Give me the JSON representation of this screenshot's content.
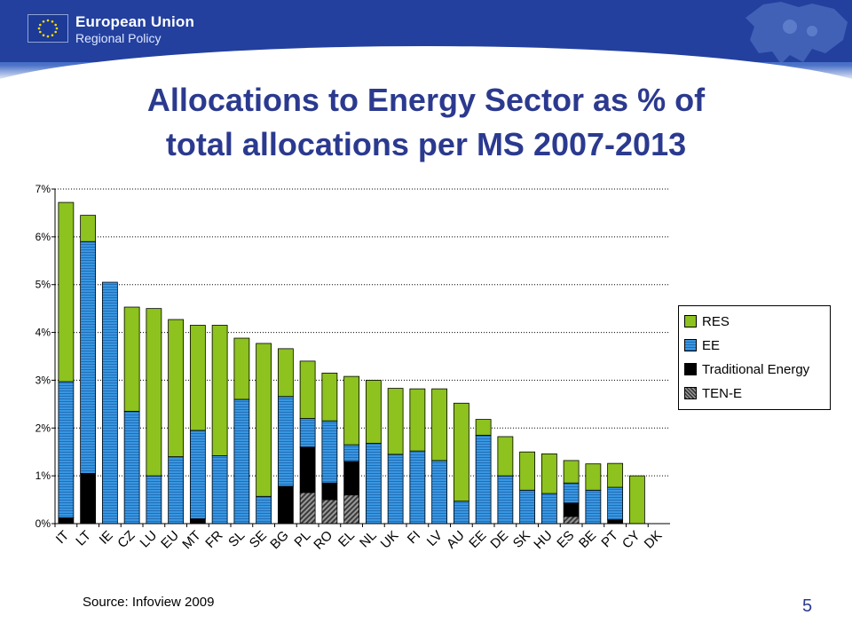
{
  "header": {
    "brand_line1": "European Union",
    "brand_line2": "Regional Policy"
  },
  "colors": {
    "RES": "#8dc21f",
    "EE": "#3a96e0",
    "Traditional Energy": "#000000",
    "TEN-E": "#555555",
    "title": "#2b3a8f",
    "header": "#23409f"
  },
  "chart_data": {
    "type": "bar",
    "stacked": true,
    "title": "Allocations to Energy Sector as % of total allocations per MS 2007-2013",
    "xlabel": "",
    "ylabel": "",
    "ylim": [
      0,
      7
    ],
    "yticks": [
      "0%",
      "1%",
      "2%",
      "3%",
      "4%",
      "5%",
      "6%",
      "7%"
    ],
    "grid": true,
    "legend_position": "right",
    "categories": [
      "IT",
      "LT",
      "IE",
      "CZ",
      "LU",
      "EU",
      "MT",
      "FR",
      "SL",
      "SE",
      "BG",
      "PL",
      "RO",
      "EL",
      "NL",
      "UK",
      "FI",
      "LV",
      "AU",
      "EE",
      "DE",
      "SK",
      "HU",
      "ES",
      "BE",
      "PT",
      "CY",
      "DK"
    ],
    "series": [
      {
        "name": "TEN-E",
        "values": [
          0,
          0,
          0,
          0,
          0,
          0,
          0,
          0,
          0,
          0,
          0,
          0.65,
          0.5,
          0.6,
          0,
          0,
          0,
          0,
          0,
          0,
          0,
          0,
          0,
          0.15,
          0,
          0,
          0,
          0
        ]
      },
      {
        "name": "Traditional Energy",
        "values": [
          0.12,
          1.05,
          0,
          0,
          0,
          0,
          0.1,
          0,
          0,
          0,
          0.78,
          0.95,
          0.35,
          0.7,
          0,
          0,
          0,
          0,
          0,
          0,
          0,
          0,
          0,
          0.28,
          0,
          0.08,
          0,
          0
        ]
      },
      {
        "name": "EE",
        "values": [
          2.85,
          4.85,
          5.05,
          2.35,
          1.0,
          1.4,
          1.85,
          1.42,
          2.6,
          0.57,
          1.88,
          0.6,
          1.3,
          0.35,
          1.68,
          1.45,
          1.52,
          1.32,
          0.47,
          1.85,
          1.0,
          0.7,
          0.63,
          0.42,
          0.7,
          0.68,
          0,
          0
        ]
      },
      {
        "name": "RES",
        "values": [
          3.75,
          0.55,
          0,
          2.18,
          3.5,
          2.87,
          2.2,
          2.73,
          1.28,
          3.2,
          1.0,
          1.2,
          1.0,
          1.43,
          1.32,
          1.38,
          1.3,
          1.5,
          2.05,
          0.33,
          0.82,
          0.8,
          0.83,
          0.47,
          0.55,
          0.5,
          1.0,
          0
        ]
      }
    ],
    "legend_order": [
      "RES",
      "EE",
      "Traditional Energy",
      "TEN-E"
    ]
  },
  "footer": {
    "source": "Source: Infoview 2009",
    "page_number": "5"
  }
}
